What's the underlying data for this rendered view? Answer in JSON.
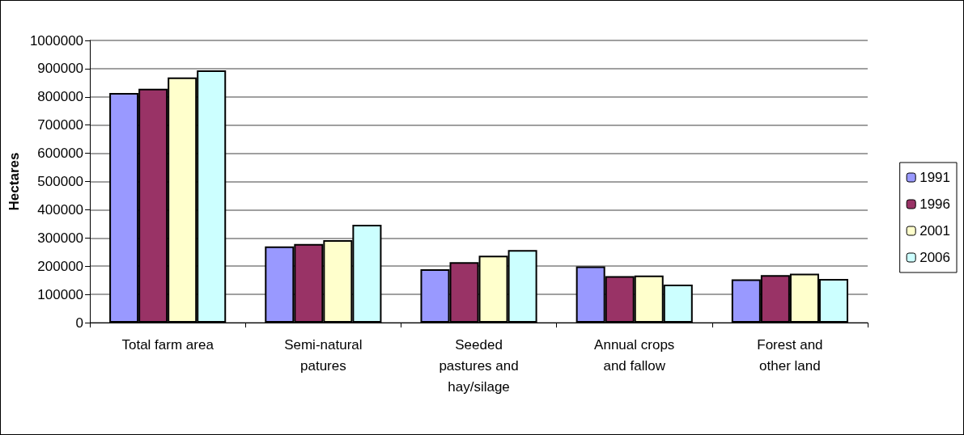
{
  "chart_data": {
    "type": "bar",
    "ylabel": "Hectares",
    "categories": [
      "Total farm area",
      "Semi-natural\npatures",
      "Seeded\npastures and\nhay/silage",
      "Annual crops\nand fallow",
      "Forest and\nother land"
    ],
    "series": [
      {
        "name": "1991",
        "color": "#9999ff",
        "values": [
          814000,
          270000,
          189000,
          199000,
          153000
        ]
      },
      {
        "name": "1996",
        "color": "#993366",
        "values": [
          829000,
          279000,
          214000,
          165000,
          168000
        ]
      },
      {
        "name": "2001",
        "color": "#ffffcc",
        "values": [
          869000,
          292000,
          237000,
          167000,
          173000
        ]
      },
      {
        "name": "2006",
        "color": "#ccffff",
        "values": [
          894000,
          347000,
          257000,
          135000,
          155000
        ]
      }
    ],
    "ylim": [
      0,
      1000000
    ],
    "yticks": [
      0,
      100000,
      200000,
      300000,
      400000,
      500000,
      600000,
      700000,
      800000,
      900000,
      1000000
    ],
    "grid": "y",
    "legend": "right"
  }
}
